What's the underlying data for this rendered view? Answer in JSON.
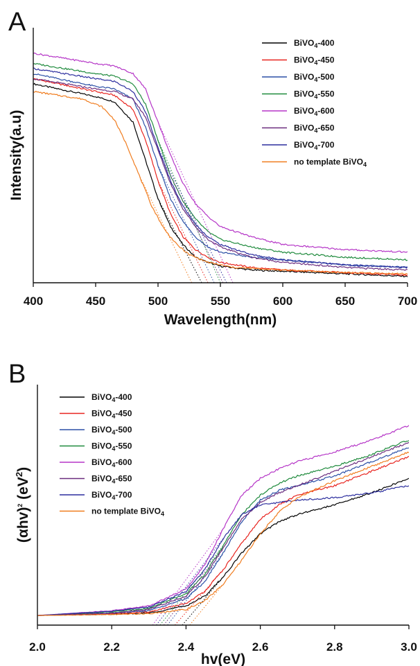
{
  "chart_data": [
    {
      "type": "line",
      "panel": "A",
      "xlabel": "Wavelength(nm)",
      "ylabel": "Intensity(a.u)",
      "xlim": [
        400,
        700
      ],
      "ylim": [
        0,
        1
      ],
      "xticks": [
        400,
        450,
        500,
        550,
        600,
        650,
        700
      ],
      "y_tick_labels": false,
      "grid": false,
      "legend_position": "top-right",
      "extrapolation_lines": "dotted",
      "series": [
        {
          "name": "BiVO4-400",
          "label_parts": [
            "BiVO",
            "4",
            "-400"
          ],
          "color": "#000000",
          "x": [
            400,
            450,
            465,
            480,
            490,
            500,
            510,
            520,
            530,
            540,
            550,
            575,
            600,
            650,
            700
          ],
          "y": [
            0.78,
            0.73,
            0.71,
            0.63,
            0.48,
            0.33,
            0.22,
            0.15,
            0.1,
            0.08,
            0.065,
            0.05,
            0.045,
            0.035,
            0.025
          ],
          "onset": 535
        },
        {
          "name": "BiVO4-450",
          "label_parts": [
            "BiVO",
            "4",
            "-450"
          ],
          "color": "#e8231e",
          "x": [
            400,
            450,
            465,
            480,
            490,
            500,
            510,
            520,
            530,
            540,
            550,
            575,
            600,
            650,
            700
          ],
          "y": [
            0.8,
            0.75,
            0.735,
            0.68,
            0.56,
            0.4,
            0.27,
            0.18,
            0.13,
            0.1,
            0.08,
            0.06,
            0.05,
            0.04,
            0.03
          ],
          "onset": 540
        },
        {
          "name": "BiVO4-500",
          "label_parts": [
            "BiVO",
            "4",
            "-500"
          ],
          "color": "#2a4fa6",
          "x": [
            400,
            450,
            465,
            480,
            490,
            500,
            510,
            520,
            530,
            540,
            550,
            575,
            600,
            650,
            700
          ],
          "y": [
            0.82,
            0.77,
            0.76,
            0.72,
            0.61,
            0.46,
            0.33,
            0.24,
            0.18,
            0.14,
            0.12,
            0.1,
            0.09,
            0.07,
            0.06
          ],
          "onset": 545
        },
        {
          "name": "BiVO4-550",
          "label_parts": [
            "BiVO",
            "4",
            "-550"
          ],
          "color": "#1e8a3c",
          "x": [
            400,
            450,
            465,
            480,
            490,
            500,
            510,
            520,
            530,
            540,
            550,
            575,
            600,
            650,
            700
          ],
          "y": [
            0.86,
            0.82,
            0.81,
            0.78,
            0.7,
            0.56,
            0.42,
            0.32,
            0.25,
            0.2,
            0.17,
            0.14,
            0.12,
            0.1,
            0.09
          ],
          "onset": 550
        },
        {
          "name": "BiVO4-600",
          "label_parts": [
            "BiVO",
            "4",
            "-600"
          ],
          "color": "#b535c7",
          "x": [
            400,
            450,
            465,
            480,
            490,
            500,
            510,
            520,
            530,
            540,
            550,
            575,
            600,
            650,
            700
          ],
          "y": [
            0.9,
            0.86,
            0.85,
            0.82,
            0.76,
            0.63,
            0.5,
            0.39,
            0.31,
            0.26,
            0.22,
            0.18,
            0.15,
            0.13,
            0.12
          ],
          "onset": 560
        },
        {
          "name": "BiVO4-650",
          "label_parts": [
            "BiVO",
            "4",
            "-650"
          ],
          "color": "#6a2c7e",
          "x": [
            400,
            450,
            465,
            480,
            490,
            500,
            510,
            520,
            530,
            540,
            550,
            575,
            600,
            650,
            700
          ],
          "y": [
            0.8,
            0.76,
            0.75,
            0.72,
            0.65,
            0.52,
            0.39,
            0.29,
            0.22,
            0.17,
            0.14,
            0.1,
            0.08,
            0.06,
            0.05
          ],
          "onset": 552
        },
        {
          "name": "BiVO4-700",
          "label_parts": [
            "BiVO",
            "4",
            "-700"
          ],
          "color": "#2b2d9e",
          "x": [
            400,
            450,
            465,
            480,
            490,
            500,
            510,
            520,
            530,
            540,
            550,
            575,
            600,
            650,
            700
          ],
          "y": [
            0.84,
            0.8,
            0.79,
            0.75,
            0.67,
            0.53,
            0.4,
            0.3,
            0.23,
            0.18,
            0.15,
            0.11,
            0.09,
            0.07,
            0.06
          ],
          "onset": 555
        },
        {
          "name": "no template BiVO4",
          "label_parts": [
            "no template BiVO",
            "4",
            ""
          ],
          "color": "#f07c1e",
          "x": [
            400,
            440,
            455,
            465,
            475,
            485,
            495,
            505,
            515,
            525,
            540,
            560,
            600,
            650,
            700
          ],
          "y": [
            0.75,
            0.72,
            0.69,
            0.64,
            0.54,
            0.42,
            0.3,
            0.21,
            0.15,
            0.11,
            0.08,
            0.06,
            0.05,
            0.04,
            0.035
          ],
          "onset": 527
        }
      ]
    },
    {
      "type": "line",
      "panel": "B",
      "xlabel": "hv(eV)",
      "ylabel": "(αhv)²(eV²)",
      "ylabel_parts": [
        "(αhv)",
        "2",
        " (eV",
        "2",
        ")"
      ],
      "xlim": [
        2.0,
        3.0
      ],
      "ylim": [
        0,
        1
      ],
      "xticks": [
        2.0,
        2.2,
        2.4,
        2.6,
        2.8,
        3.0
      ],
      "y_tick_labels": false,
      "grid": false,
      "legend_position": "top-left",
      "extrapolation_lines": "dotted",
      "series": [
        {
          "name": "BiVO4-400",
          "label_parts": [
            "BiVO",
            "4",
            "-400"
          ],
          "color": "#000000",
          "x": [
            2.0,
            2.2,
            2.3,
            2.4,
            2.45,
            2.5,
            2.55,
            2.6,
            2.65,
            2.7,
            2.8,
            2.9,
            3.0
          ],
          "y": [
            0.04,
            0.045,
            0.05,
            0.08,
            0.12,
            0.2,
            0.3,
            0.38,
            0.43,
            0.46,
            0.5,
            0.55,
            0.61
          ],
          "onset": 2.39
        },
        {
          "name": "BiVO4-450",
          "label_parts": [
            "BiVO",
            "4",
            "-450"
          ],
          "color": "#e8231e",
          "x": [
            2.0,
            2.2,
            2.3,
            2.4,
            2.45,
            2.5,
            2.55,
            2.6,
            2.65,
            2.7,
            2.8,
            2.9,
            3.0
          ],
          "y": [
            0.04,
            0.047,
            0.055,
            0.09,
            0.14,
            0.23,
            0.34,
            0.44,
            0.5,
            0.54,
            0.58,
            0.64,
            0.7
          ],
          "onset": 2.37
        },
        {
          "name": "BiVO4-500",
          "label_parts": [
            "BiVO",
            "4",
            "-500"
          ],
          "color": "#2a4fa6",
          "x": [
            2.0,
            2.2,
            2.3,
            2.4,
            2.45,
            2.5,
            2.55,
            2.6,
            2.65,
            2.7,
            2.8,
            2.9,
            3.0
          ],
          "y": [
            0.04,
            0.05,
            0.06,
            0.11,
            0.18,
            0.3,
            0.43,
            0.52,
            0.56,
            0.58,
            0.62,
            0.68,
            0.74
          ],
          "onset": 2.35
        },
        {
          "name": "BiVO4-550",
          "label_parts": [
            "BiVO",
            "4",
            "-550"
          ],
          "color": "#1e8a3c",
          "x": [
            2.0,
            2.2,
            2.3,
            2.4,
            2.45,
            2.5,
            2.55,
            2.6,
            2.65,
            2.7,
            2.8,
            2.9,
            3.0
          ],
          "y": [
            0.04,
            0.055,
            0.07,
            0.13,
            0.21,
            0.33,
            0.46,
            0.54,
            0.59,
            0.62,
            0.66,
            0.71,
            0.77
          ],
          "onset": 2.33
        },
        {
          "name": "BiVO4-600",
          "label_parts": [
            "BiVO",
            "4",
            "-600"
          ],
          "color": "#b535c7",
          "x": [
            2.0,
            2.2,
            2.3,
            2.4,
            2.45,
            2.5,
            2.55,
            2.6,
            2.65,
            2.7,
            2.8,
            2.9,
            3.0
          ],
          "y": [
            0.04,
            0.06,
            0.08,
            0.15,
            0.25,
            0.4,
            0.54,
            0.61,
            0.65,
            0.68,
            0.72,
            0.77,
            0.83
          ],
          "onset": 2.31
        },
        {
          "name": "BiVO4-650",
          "label_parts": [
            "BiVO",
            "4",
            "-650"
          ],
          "color": "#6a2c7e",
          "x": [
            2.0,
            2.2,
            2.3,
            2.4,
            2.45,
            2.5,
            2.55,
            2.6,
            2.65,
            2.7,
            2.8,
            2.9,
            3.0
          ],
          "y": [
            0.04,
            0.05,
            0.065,
            0.12,
            0.2,
            0.32,
            0.44,
            0.51,
            0.55,
            0.58,
            0.64,
            0.7,
            0.76
          ],
          "onset": 2.34
        },
        {
          "name": "BiVO4-700",
          "label_parts": [
            "BiVO",
            "4",
            "-700"
          ],
          "color": "#2b2d9e",
          "x": [
            2.0,
            2.2,
            2.3,
            2.4,
            2.45,
            2.5,
            2.55,
            2.6,
            2.65,
            2.7,
            2.8,
            2.9,
            3.0
          ],
          "y": [
            0.04,
            0.058,
            0.075,
            0.14,
            0.23,
            0.36,
            0.46,
            0.5,
            0.51,
            0.52,
            0.53,
            0.55,
            0.58
          ],
          "onset": 2.32
        },
        {
          "name": "no template BiVO4",
          "label_parts": [
            "no template BiVO",
            "4",
            ""
          ],
          "color": "#f07c1e",
          "x": [
            2.0,
            2.2,
            2.3,
            2.4,
            2.45,
            2.5,
            2.55,
            2.6,
            2.65,
            2.7,
            2.8,
            2.9,
            3.0
          ],
          "y": [
            0.04,
            0.044,
            0.048,
            0.065,
            0.1,
            0.17,
            0.27,
            0.38,
            0.47,
            0.53,
            0.6,
            0.66,
            0.72
          ],
          "onset": 2.41
        }
      ]
    }
  ]
}
